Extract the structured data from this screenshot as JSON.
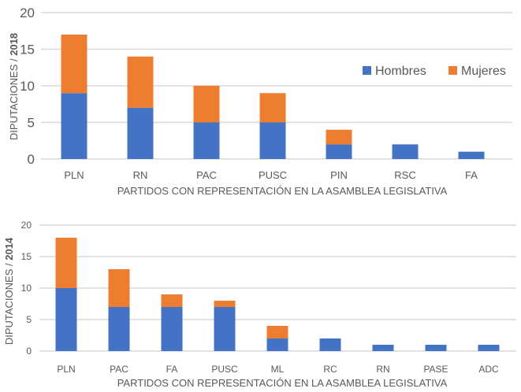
{
  "chart_data": [
    {
      "type": "bar",
      "stacked": true,
      "categories": [
        "PLN",
        "RN",
        "PAC",
        "PUSC",
        "PIN",
        "RSC",
        "FA"
      ],
      "series": [
        {
          "name": "Hombres",
          "color": "#4472C4",
          "values": [
            9,
            7,
            5,
            5,
            2,
            2,
            1
          ]
        },
        {
          "name": "Mujeres",
          "color": "#ED7D31",
          "values": [
            8,
            7,
            5,
            4,
            2,
            0,
            0
          ]
        }
      ],
      "ylabel_prefix": "DIPUTACIONES / ",
      "ylabel_bold": "2018",
      "xlabel": "PARTIDOS CON REPRESENTACIÓN EN LA ASAMBLEA LEGISLATIVA",
      "ylim": [
        0,
        20
      ],
      "yticks": [
        0,
        5,
        10,
        15,
        20
      ],
      "grid": true,
      "legend": "right"
    },
    {
      "type": "bar",
      "stacked": true,
      "categories": [
        "PLN",
        "PAC",
        "FA",
        "PUSC",
        "ML",
        "RC",
        "RN",
        "PASE",
        "ADC"
      ],
      "series": [
        {
          "name": "Hombres",
          "color": "#4472C4",
          "values": [
            10,
            7,
            7,
            7,
            2,
            2,
            1,
            1,
            1
          ]
        },
        {
          "name": "Mujeres",
          "color": "#ED7D31",
          "values": [
            8,
            6,
            2,
            1,
            2,
            0,
            0,
            0,
            0
          ]
        }
      ],
      "ylabel_prefix": "DIPUTACIONES / ",
      "ylabel_bold": "2014",
      "xlabel": "PARTIDOS CON REPRESENTACIÓN EN LA ASAMBLEA LEGISLATIVA",
      "ylim": [
        0,
        20
      ],
      "yticks": [
        0,
        5,
        10,
        15,
        20
      ],
      "grid": true,
      "legend": "none"
    }
  ]
}
